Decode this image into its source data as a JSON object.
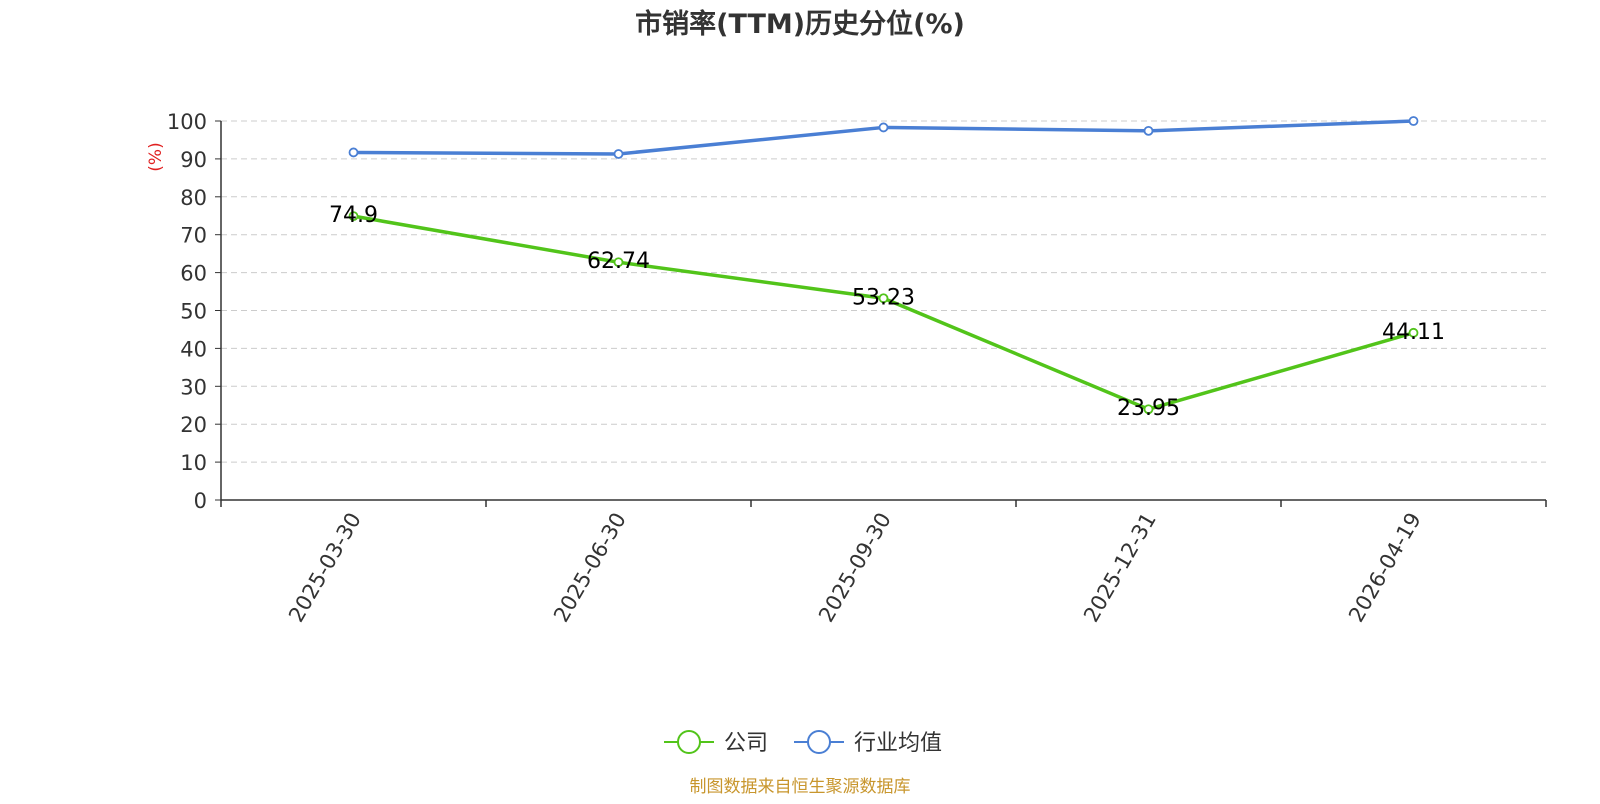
{
  "chart_data": {
    "type": "line",
    "title": "市销率(TTM)历史分位(%)",
    "ylabel": "(%)",
    "xlabel": "",
    "categories": [
      "2025-03-30",
      "2025-06-30",
      "2025-09-30",
      "2025-12-31",
      "2026-04-19"
    ],
    "ylim": [
      0,
      100
    ],
    "yticks": [
      0,
      10,
      20,
      30,
      40,
      50,
      60,
      70,
      80,
      90,
      100
    ],
    "grid": true,
    "legend_position": "bottom-center",
    "series": [
      {
        "name": "公司",
        "color": "#52c41a",
        "values": [
          74.9,
          62.74,
          53.23,
          23.95,
          44.11
        ],
        "labels": [
          "74.9",
          "62.74",
          "53.23",
          "23.95",
          "44.11"
        ]
      },
      {
        "name": "行业均值",
        "color": "#4a7fd4",
        "values": [
          91.7,
          91.3,
          98.3,
          97.4,
          100
        ]
      }
    ]
  },
  "footer": {
    "source": "制图数据来自恒生聚源数据库"
  },
  "colors": {
    "ylabel": "#e02020",
    "source": "#c8962d",
    "title": "#333333",
    "axis": "#333333",
    "grid": "#cccccc"
  }
}
